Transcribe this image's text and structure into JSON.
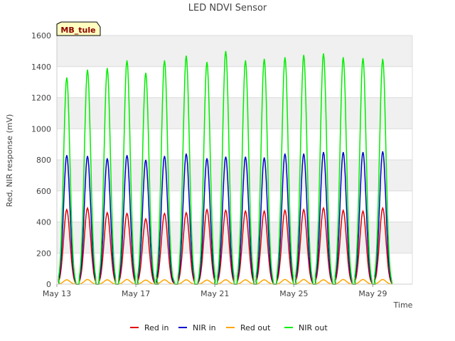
{
  "chart_data": {
    "type": "line",
    "title": "LED NDVI Sensor",
    "xlabel": "Time",
    "ylabel": "Red, NIR response (mV)",
    "ylim": [
      0,
      1600
    ],
    "xlim": [
      0,
      18
    ],
    "yticks": [
      0,
      200,
      400,
      600,
      800,
      1000,
      1200,
      1400,
      1600
    ],
    "xticks": [
      {
        "x": 0,
        "label": "May 13"
      },
      {
        "x": 4,
        "label": "May 17"
      },
      {
        "x": 8,
        "label": "May 21"
      },
      {
        "x": 12,
        "label": "May 25"
      },
      {
        "x": 16,
        "label": "May 29"
      }
    ],
    "badge": "MB_tule",
    "grid": true,
    "legend_position": "bottom",
    "daily_peak_offset": [
      0.5,
      0.55,
      0.55,
      0.55,
      0.5,
      0.45,
      0.55,
      0.6,
      0.55,
      0.55,
      0.5,
      0.55,
      0.5,
      0.5,
      0.5,
      0.5,
      0.5
    ],
    "series": [
      {
        "name": "Red in",
        "color": "#e00000",
        "daily_peaks": [
          480,
          490,
          460,
          455,
          420,
          455,
          460,
          480,
          475,
          470,
          470,
          475,
          480,
          490,
          475,
          470,
          490
        ]
      },
      {
        "name": "NIR in",
        "color": "#0000cc",
        "daily_peaks": [
          830,
          825,
          810,
          830,
          800,
          825,
          840,
          810,
          820,
          820,
          815,
          840,
          840,
          850,
          850,
          850,
          855
        ]
      },
      {
        "name": "Red out",
        "color": "#ffa500",
        "daily_peaks": [
          28,
          30,
          28,
          30,
          26,
          28,
          28,
          26,
          28,
          28,
          28,
          30,
          30,
          28,
          30,
          30,
          30
        ]
      },
      {
        "name": "NIR out",
        "color": "#00ee00",
        "daily_peaks": [
          1330,
          1380,
          1390,
          1440,
          1360,
          1440,
          1470,
          1430,
          1500,
          1440,
          1450,
          1460,
          1475,
          1485,
          1460,
          1455,
          1450
        ]
      }
    ]
  }
}
